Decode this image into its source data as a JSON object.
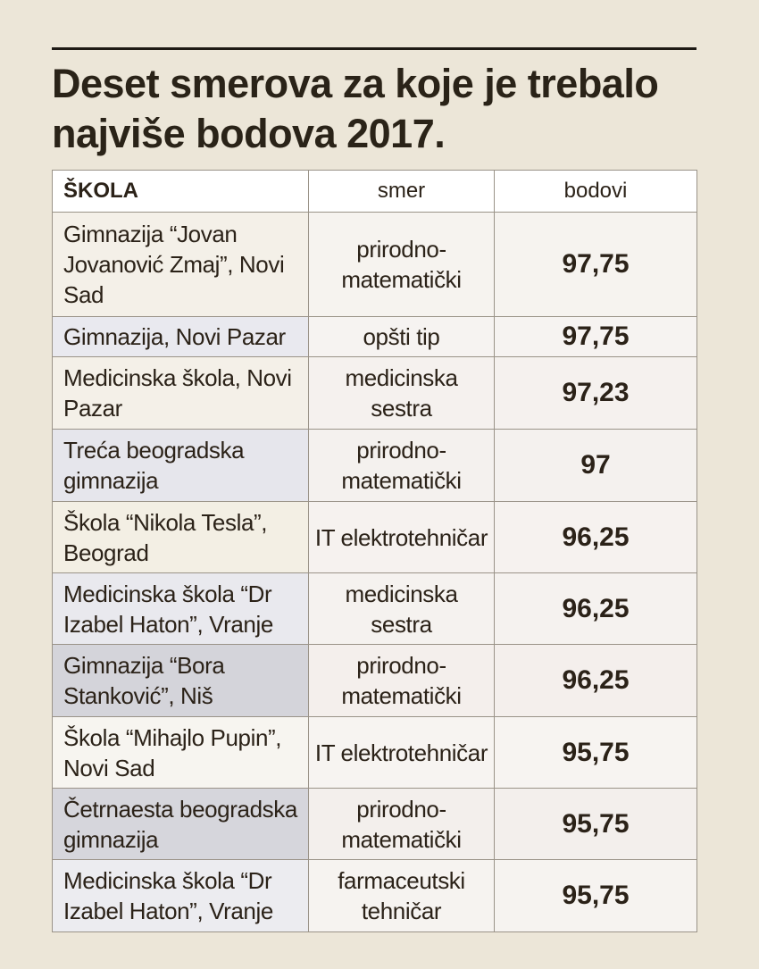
{
  "title": "Deset smerova za koje je trebalo najviše bodova 2017.",
  "table": {
    "headers": [
      "ŠKOLA",
      "smer",
      "bodovi"
    ],
    "rows": [
      {
        "school": "Gimnazija “Jovan Jovanović Zmaj”, Novi Sad",
        "smer": "prirodno-matematički",
        "points": "97,75"
      },
      {
        "school": "Gimnazija, Novi Pazar",
        "smer": "opšti tip",
        "points": "97,75"
      },
      {
        "school": "Medicinska škola, Novi Pazar",
        "smer": "medicinska sestra",
        "points": "97,23"
      },
      {
        "school": "Treća beogradska gimnazija",
        "smer": "prirodno-matematički",
        "points": "97"
      },
      {
        "school": "Škola “Nikola Tesla”, Beograd",
        "smer": "IT elektrotehničar",
        "points": "96,25"
      },
      {
        "school": "Medicinska škola “Dr Izabel Haton”, Vranje",
        "smer": "medicinska sestra",
        "points": "96,25"
      },
      {
        "school": "Gimnazija “Bora Stanković”, Niš",
        "smer": "prirodno-matematički",
        "points": "96,25"
      },
      {
        "school": "Škola “Mihajlo Pupin”, Novi Sad",
        "smer": "IT elektrotehničar",
        "points": "95,75"
      },
      {
        "school": "Četrnaesta beogradska gimnazija",
        "smer": "prirodno-matematički",
        "points": "95,75"
      },
      {
        "school": "Medicinska škola “Dr Izabel Haton”, Vranje",
        "smer": "farmaceutski tehničar",
        "points": "95,75"
      }
    ]
  },
  "colors": {
    "page_background": "#ece6d8",
    "header_background": "#ffffff",
    "text": "#2b2218",
    "school_cell_shades": [
      "#f4f0e8",
      "#e9e9ef",
      "#f4f0e8",
      "#e6e6ec",
      "#f3efe4",
      "#e9e9ee",
      "#d4d4da",
      "#f7f5f0",
      "#d6d6dc",
      "#ececf0"
    ],
    "other_cell_shades": [
      "#f6f3ef",
      "#f6f3f1",
      "#f5f1ee",
      "#f4f1ee",
      "#f6f2ef",
      "#f5f2ef",
      "#f4efec",
      "#f7f4f1",
      "#f3efec",
      "#f6f3f0"
    ]
  }
}
